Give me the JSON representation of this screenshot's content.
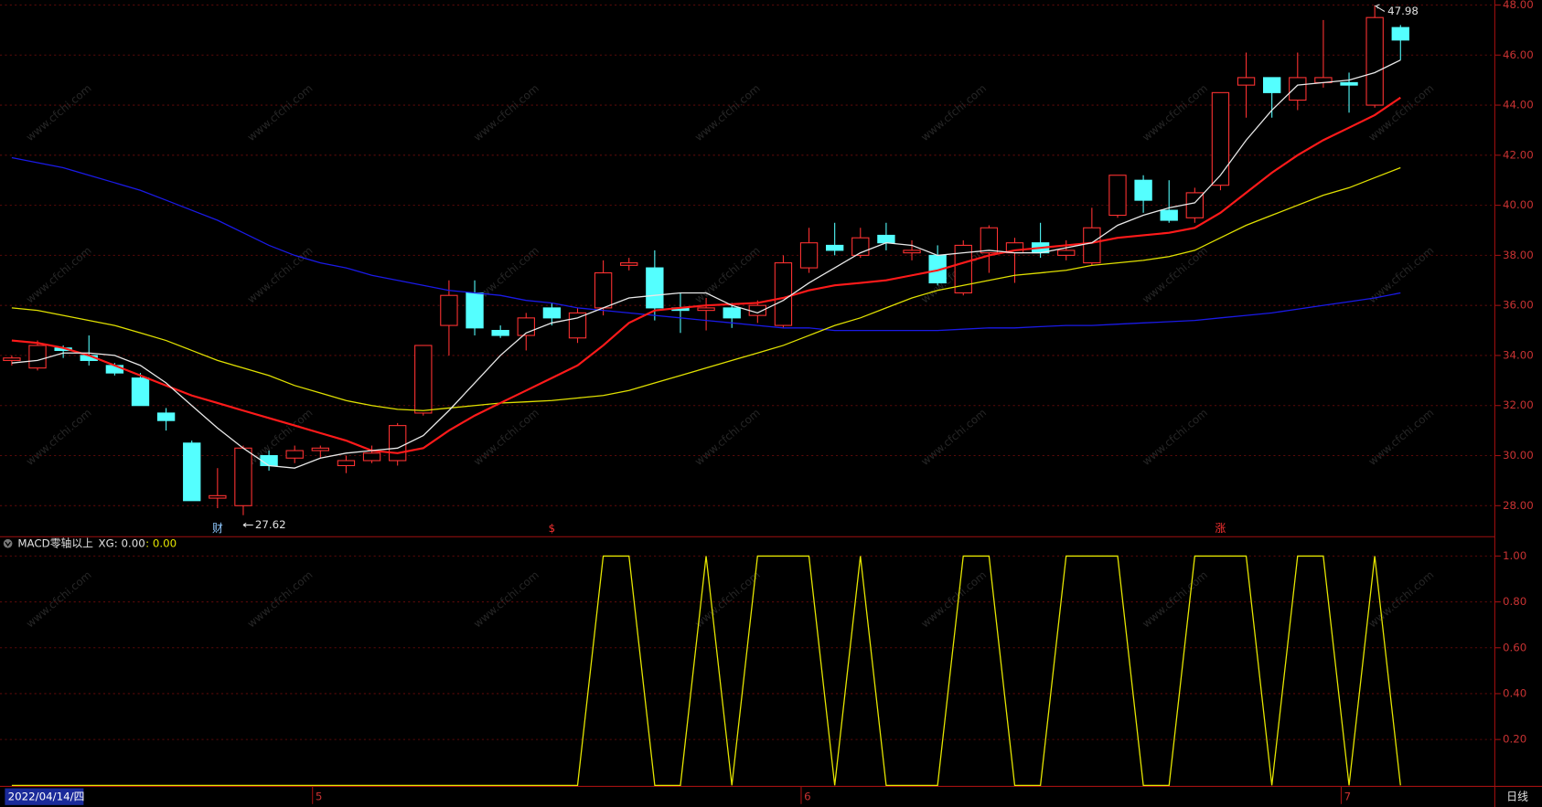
{
  "watermark": "www.cfchi.com",
  "chart_data": [
    {
      "type": "candlestick",
      "categories": [
        "2022/04/14/四",
        null,
        null,
        null,
        null,
        null,
        null,
        null,
        null,
        null,
        null,
        null,
        "5",
        null,
        null,
        null,
        null,
        null,
        null,
        null,
        null,
        null,
        null,
        null,
        null,
        null,
        null,
        null,
        null,
        null,
        null,
        "6",
        null,
        null,
        null,
        null,
        null,
        null,
        null,
        null,
        null,
        null,
        null,
        null,
        null,
        null,
        null,
        null,
        null,
        null,
        null,
        null,
        "7",
        null,
        null
      ],
      "open": [
        33.8,
        33.5,
        34.3,
        34.0,
        33.6,
        33.1,
        31.7,
        30.5,
        28.3,
        28.0,
        30.0,
        29.9,
        30.2,
        29.6,
        29.8,
        29.8,
        31.7,
        35.2,
        36.5,
        35.0,
        34.8,
        35.9,
        34.7,
        35.9,
        37.6,
        37.5,
        35.9,
        35.8,
        35.9,
        35.6,
        35.2,
        37.5,
        38.4,
        38.0,
        38.8,
        38.1,
        38.0,
        36.5,
        38.1,
        38.1,
        38.5,
        38.0,
        37.7,
        39.6,
        41.0,
        39.8,
        39.5,
        40.8,
        44.8,
        45.1,
        44.2,
        44.9,
        44.9,
        44.0,
        47.1
      ],
      "high": [
        34.0,
        34.6,
        34.4,
        34.8,
        33.7,
        33.3,
        31.9,
        30.6,
        29.5,
        30.4,
        30.2,
        30.4,
        30.4,
        30.0,
        30.4,
        31.3,
        34.4,
        37.0,
        37.0,
        35.2,
        35.7,
        36.1,
        35.9,
        37.8,
        37.9,
        38.2,
        36.5,
        36.3,
        36.1,
        36.2,
        38.0,
        39.1,
        39.3,
        39.1,
        39.3,
        38.6,
        38.4,
        38.6,
        39.2,
        38.7,
        39.3,
        38.6,
        39.9,
        41.2,
        41.2,
        41.0,
        40.7,
        44.5,
        46.1,
        45.1,
        46.1,
        47.4,
        45.3,
        47.98,
        47.2
      ],
      "low": [
        33.6,
        33.4,
        33.9,
        33.6,
        33.2,
        32.0,
        31.0,
        28.2,
        27.9,
        27.62,
        29.4,
        29.7,
        29.9,
        29.3,
        29.7,
        29.6,
        31.6,
        34.0,
        34.8,
        34.7,
        34.2,
        35.2,
        34.5,
        35.6,
        37.4,
        35.4,
        34.9,
        35.0,
        35.1,
        35.3,
        35.1,
        37.3,
        38.0,
        37.9,
        38.2,
        37.8,
        36.8,
        36.4,
        37.3,
        36.9,
        37.9,
        37.8,
        37.6,
        39.5,
        39.7,
        39.3,
        39.3,
        40.6,
        43.5,
        43.5,
        43.8,
        44.7,
        43.7,
        43.9,
        45.8
      ],
      "close": [
        33.9,
        34.4,
        34.2,
        33.8,
        33.3,
        32.0,
        31.4,
        28.2,
        28.4,
        30.3,
        29.6,
        30.2,
        30.3,
        29.8,
        30.1,
        31.2,
        34.4,
        36.4,
        35.1,
        34.8,
        35.5,
        35.5,
        35.7,
        37.3,
        37.7,
        35.9,
        35.8,
        35.9,
        35.5,
        36.0,
        37.7,
        38.5,
        38.2,
        38.7,
        38.5,
        38.2,
        36.9,
        38.4,
        39.1,
        38.5,
        38.1,
        38.2,
        39.1,
        41.2,
        40.2,
        39.4,
        40.5,
        44.5,
        45.1,
        44.5,
        45.1,
        45.1,
        44.8,
        47.5,
        46.6
      ],
      "up_color": "#ff3232",
      "down_color": "#54ffff",
      "series": [
        {
          "color": "#1a1ae6",
          "values": [
            41.9,
            41.7,
            41.5,
            41.2,
            40.9,
            40.6,
            40.2,
            39.8,
            39.4,
            38.9,
            38.4,
            38.0,
            37.7,
            37.5,
            37.2,
            37.0,
            36.8,
            36.6,
            36.5,
            36.4,
            36.2,
            36.1,
            35.9,
            35.8,
            35.7,
            35.6,
            35.5,
            35.4,
            35.3,
            35.2,
            35.1,
            35.1,
            35.0,
            35.0,
            35.0,
            35.0,
            35.0,
            35.05,
            35.1,
            35.1,
            35.15,
            35.2,
            35.2,
            35.25,
            35.3,
            35.35,
            35.4,
            35.5,
            35.6,
            35.7,
            35.85,
            36.0,
            36.15,
            36.3,
            36.5
          ]
        },
        {
          "color": "#e0e000",
          "values": [
            35.9,
            35.8,
            35.6,
            35.4,
            35.2,
            34.9,
            34.6,
            34.2,
            33.8,
            33.5,
            33.2,
            32.8,
            32.5,
            32.2,
            32.0,
            31.85,
            31.8,
            31.9,
            32.0,
            32.1,
            32.15,
            32.2,
            32.3,
            32.4,
            32.6,
            32.9,
            33.2,
            33.5,
            33.8,
            34.1,
            34.4,
            34.8,
            35.2,
            35.5,
            35.9,
            36.3,
            36.6,
            36.8,
            37.0,
            37.2,
            37.3,
            37.4,
            37.6,
            37.7,
            37.8,
            37.95,
            38.2,
            38.7,
            39.2,
            39.6,
            40.0,
            40.4,
            40.7,
            41.1,
            41.5
          ]
        },
        {
          "color": "#ff1a1a",
          "values": [
            34.6,
            34.5,
            34.3,
            34.0,
            33.6,
            33.2,
            32.8,
            32.4,
            32.1,
            31.8,
            31.5,
            31.2,
            30.9,
            30.6,
            30.2,
            30.1,
            30.3,
            31.0,
            31.6,
            32.1,
            32.6,
            33.1,
            33.6,
            34.4,
            35.3,
            35.8,
            35.9,
            36.0,
            36.05,
            36.1,
            36.3,
            36.6,
            36.8,
            36.9,
            37.0,
            37.2,
            37.4,
            37.7,
            38.0,
            38.2,
            38.3,
            38.4,
            38.5,
            38.7,
            38.8,
            38.9,
            39.1,
            39.7,
            40.5,
            41.3,
            42.0,
            42.6,
            43.1,
            43.6,
            44.3
          ]
        },
        {
          "color": "#e8e8e8",
          "values": [
            33.7,
            33.8,
            34.1,
            34.1,
            34.0,
            33.6,
            32.9,
            32.0,
            31.1,
            30.3,
            29.6,
            29.5,
            29.9,
            30.1,
            30.2,
            30.3,
            30.8,
            31.8,
            32.9,
            34.0,
            34.9,
            35.3,
            35.5,
            35.9,
            36.3,
            36.4,
            36.5,
            36.5,
            36.0,
            35.7,
            36.2,
            36.9,
            37.5,
            38.1,
            38.5,
            38.4,
            38.0,
            38.1,
            38.2,
            38.1,
            38.1,
            38.3,
            38.5,
            39.2,
            39.6,
            39.9,
            40.1,
            41.2,
            42.6,
            43.8,
            44.8,
            44.9,
            45.0,
            45.3,
            45.8
          ]
        }
      ],
      "event_markers": [
        null,
        null,
        null,
        null,
        null,
        null,
        null,
        null,
        "财",
        null,
        null,
        null,
        null,
        null,
        null,
        null,
        null,
        null,
        null,
        null,
        null,
        "$",
        null,
        null,
        null,
        null,
        null,
        null,
        null,
        null,
        null,
        null,
        null,
        null,
        null,
        null,
        null,
        null,
        null,
        null,
        null,
        null,
        null,
        null,
        null,
        null,
        null,
        "涨",
        null,
        null,
        null,
        null,
        null,
        null,
        null
      ],
      "annotations": [
        "47.98",
        "27.62"
      ],
      "period_label": "日线",
      "ylim": [
        26.8,
        48.2
      ],
      "yticks": [
        {
          "value": 48,
          "label": "48.00"
        },
        {
          "value": 46,
          "label": "46.00"
        },
        {
          "value": 44,
          "label": "44.00"
        },
        {
          "value": 42,
          "label": "42.00"
        },
        {
          "value": 40,
          "label": "40.00"
        },
        {
          "value": 38,
          "label": "38.00"
        },
        {
          "value": 36,
          "label": "36.00"
        },
        {
          "value": 34,
          "label": "34.00"
        },
        {
          "value": 32,
          "label": "32.00"
        },
        {
          "value": 30,
          "label": "30.00"
        },
        {
          "value": 28,
          "label": "28.00"
        }
      ],
      "grid": true
    },
    {
      "type": "line",
      "title": "MACD零轴以上",
      "legend_texts": [
        "XG: 0.00",
        ": 0.00"
      ],
      "series": [
        {
          "color": "#e6e600",
          "values": [
            0,
            0,
            0,
            0,
            0,
            0,
            0,
            0,
            0,
            0,
            0,
            0,
            0,
            0,
            0,
            0,
            0,
            0,
            0,
            0,
            0,
            0,
            0,
            1,
            1,
            0,
            0,
            1,
            0,
            1,
            1,
            1,
            0,
            1,
            0,
            0,
            0,
            1,
            1,
            0,
            0,
            1,
            1,
            1,
            0,
            0,
            1,
            1,
            1,
            0,
            1,
            1,
            0,
            1,
            0
          ]
        }
      ],
      "ylim": [
        0,
        1.08
      ],
      "yticks": [
        {
          "value": 1,
          "label": "1.00"
        },
        {
          "value": 0.8,
          "label": "0.80"
        },
        {
          "value": 0.6,
          "label": "0.60"
        },
        {
          "value": 0.4,
          "label": "0.40"
        },
        {
          "value": 0.2,
          "label": "0.20"
        }
      ],
      "grid": true
    }
  ]
}
